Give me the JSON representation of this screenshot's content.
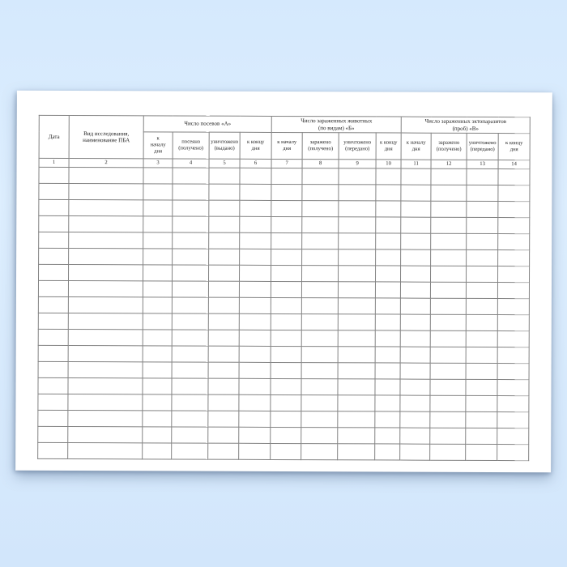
{
  "page": {
    "background_color": "#d6e9fc",
    "paper_color": "#ffffff",
    "grid_line_color": "#828282"
  },
  "table": {
    "col_date": "Дата",
    "col_research": "Вид исследования,\nнаименование ПБА",
    "groups": [
      {
        "title": "Число посевов «А»",
        "subs": [
          "к\nначалу\nдня",
          "посеяно\n(получено)",
          "уничтожено\n(выдано)",
          "к концу\nдня"
        ]
      },
      {
        "title": "Число зараженных животных\n(по видам) «Б»",
        "subs": [
          "к началу\nдня",
          "заражено\n(получено)",
          "уничтожено\n(передано)",
          "к концу\nдня"
        ]
      },
      {
        "title": "Число зараженных эктопаразитов\n(проб) «В»",
        "subs": [
          "к началу\nдня",
          "заражено\n(получено)",
          "уничтожено\n(передано)",
          "к концу\nдня"
        ]
      }
    ],
    "column_numbers": [
      "1",
      "2",
      "3",
      "4",
      "5",
      "6",
      "7",
      "8",
      "9",
      "10",
      "11",
      "12",
      "13",
      "14"
    ],
    "empty_row_count": 18
  }
}
